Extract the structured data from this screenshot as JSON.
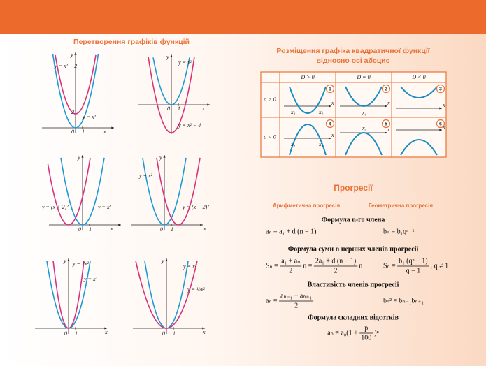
{
  "left": {
    "title": "Перетворення графіків функцій",
    "graphs": [
      {
        "labels": [
          "y",
          "y = x² + 2",
          "y = x²",
          "2",
          "0",
          "1",
          "x"
        ]
      },
      {
        "labels": [
          "y",
          "y = x²",
          "y = x² − 4",
          "0",
          "1",
          "x"
        ]
      },
      {
        "labels": [
          "y",
          "y = (x + 2)²",
          "y = x²",
          "0",
          "1",
          "x"
        ]
      },
      {
        "labels": [
          "y",
          "y = x²",
          "y = (x − 2)²",
          "0",
          "1",
          "x"
        ]
      },
      {
        "labels": [
          "y",
          "y = 2x²",
          "y = x²",
          "0",
          "1",
          "x"
        ]
      },
      {
        "labels": [
          "y",
          "y = x²",
          "y = ½x²",
          "0",
          "1",
          "x"
        ]
      }
    ]
  },
  "quadratic": {
    "title": [
      "Розміщення графіка квадратичної функції",
      "відносно осі абсцис"
    ],
    "header": [
      "D > 0",
      "D = 0",
      "D < 0"
    ],
    "rows": [
      {
        "label": "a > 0",
        "cells": [
          {
            "number": "1",
            "labels": [
              "x₁",
              "x₂",
              "x"
            ]
          },
          {
            "number": "2",
            "labels": [
              "x₀",
              "x"
            ]
          },
          {
            "number": "3",
            "labels": [
              "x"
            ]
          }
        ]
      },
      {
        "label": "a < 0",
        "cells": [
          {
            "number": "4",
            "labels": [
              "x₁",
              "x₂",
              "x"
            ]
          },
          {
            "number": "5",
            "labels": [
              "x₀",
              "x"
            ]
          },
          {
            "number": "6",
            "labels": [
              "x"
            ]
          }
        ]
      }
    ]
  },
  "progressions": {
    "title": "Прогресії",
    "columns": [
      "Арифметична прогресія",
      "Геометрична прогресія"
    ],
    "sections": [
      {
        "title": "Формула n-го члена",
        "formulas": [
          [
            "aₙ = a₁ + d (n − 1)"
          ],
          [
            "bₙ = b₁qⁿ⁻¹"
          ]
        ]
      },
      {
        "title": "Формула суми n перших членів прогресії",
        "formulas": [
          [
            "Sₙ = ",
            {
              "num": "a₁ + aₙ",
              "den": "2"
            },
            "n = ",
            {
              "num": "2a₁ + d (n − 1)",
              "den": "2"
            },
            "n"
          ],
          [
            "Sₙ = ",
            {
              "num": "b₁ (qⁿ − 1)",
              "den": "q − 1"
            },
            ", q ≠ 1"
          ]
        ]
      },
      {
        "title": "Властивість членів прогресії",
        "formulas": [
          [
            "aₙ = ",
            {
              "num": "aₙ₋₁ + aₙ₊₁",
              "den": "2"
            }
          ],
          [
            "bₙ² = bₙ₋₁bₙ₊₁"
          ]
        ]
      },
      {
        "title": "Формула складних відсотків",
        "formulas": [
          [
            "aₙ = a₀(1 + ",
            {
              "num": "p",
              "den": "100"
            },
            ")ⁿ"
          ]
        ]
      }
    ]
  }
}
